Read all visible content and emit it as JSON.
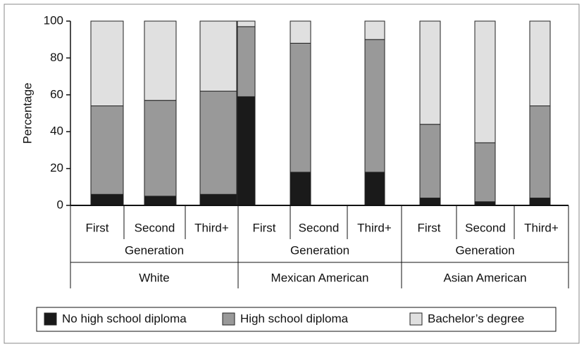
{
  "chart_data": {
    "type": "stacked_bar",
    "y_label": "Percentage",
    "categories": [
      "First",
      "Second",
      "Third+",
      "First",
      "Second",
      "Third+",
      "First",
      "Second",
      "Third+"
    ],
    "groups": [
      {
        "label": "Generation",
        "name": "White"
      },
      {
        "label": "Generation",
        "name": "Mexican American"
      },
      {
        "label": "Generation",
        "name": "Asian American"
      }
    ],
    "series": [
      {
        "name": "No high school diploma",
        "color": "#1a1a1a",
        "values": [
          6,
          5,
          6,
          59,
          18,
          18,
          4,
          2,
          4
        ]
      },
      {
        "name": "High school diploma",
        "color": "#999999",
        "values": [
          48,
          52,
          56,
          38,
          70,
          72,
          40,
          32,
          50
        ]
      },
      {
        "name": "Bachelor’s degree",
        "color": "#e0e0e0",
        "values": [
          46,
          43,
          38,
          3,
          12,
          10,
          56,
          66,
          46
        ]
      }
    ],
    "ylim": [
      0,
      100
    ],
    "yticks": [
      0,
      20,
      40,
      60,
      80,
      100
    ],
    "legend": "bottom"
  }
}
